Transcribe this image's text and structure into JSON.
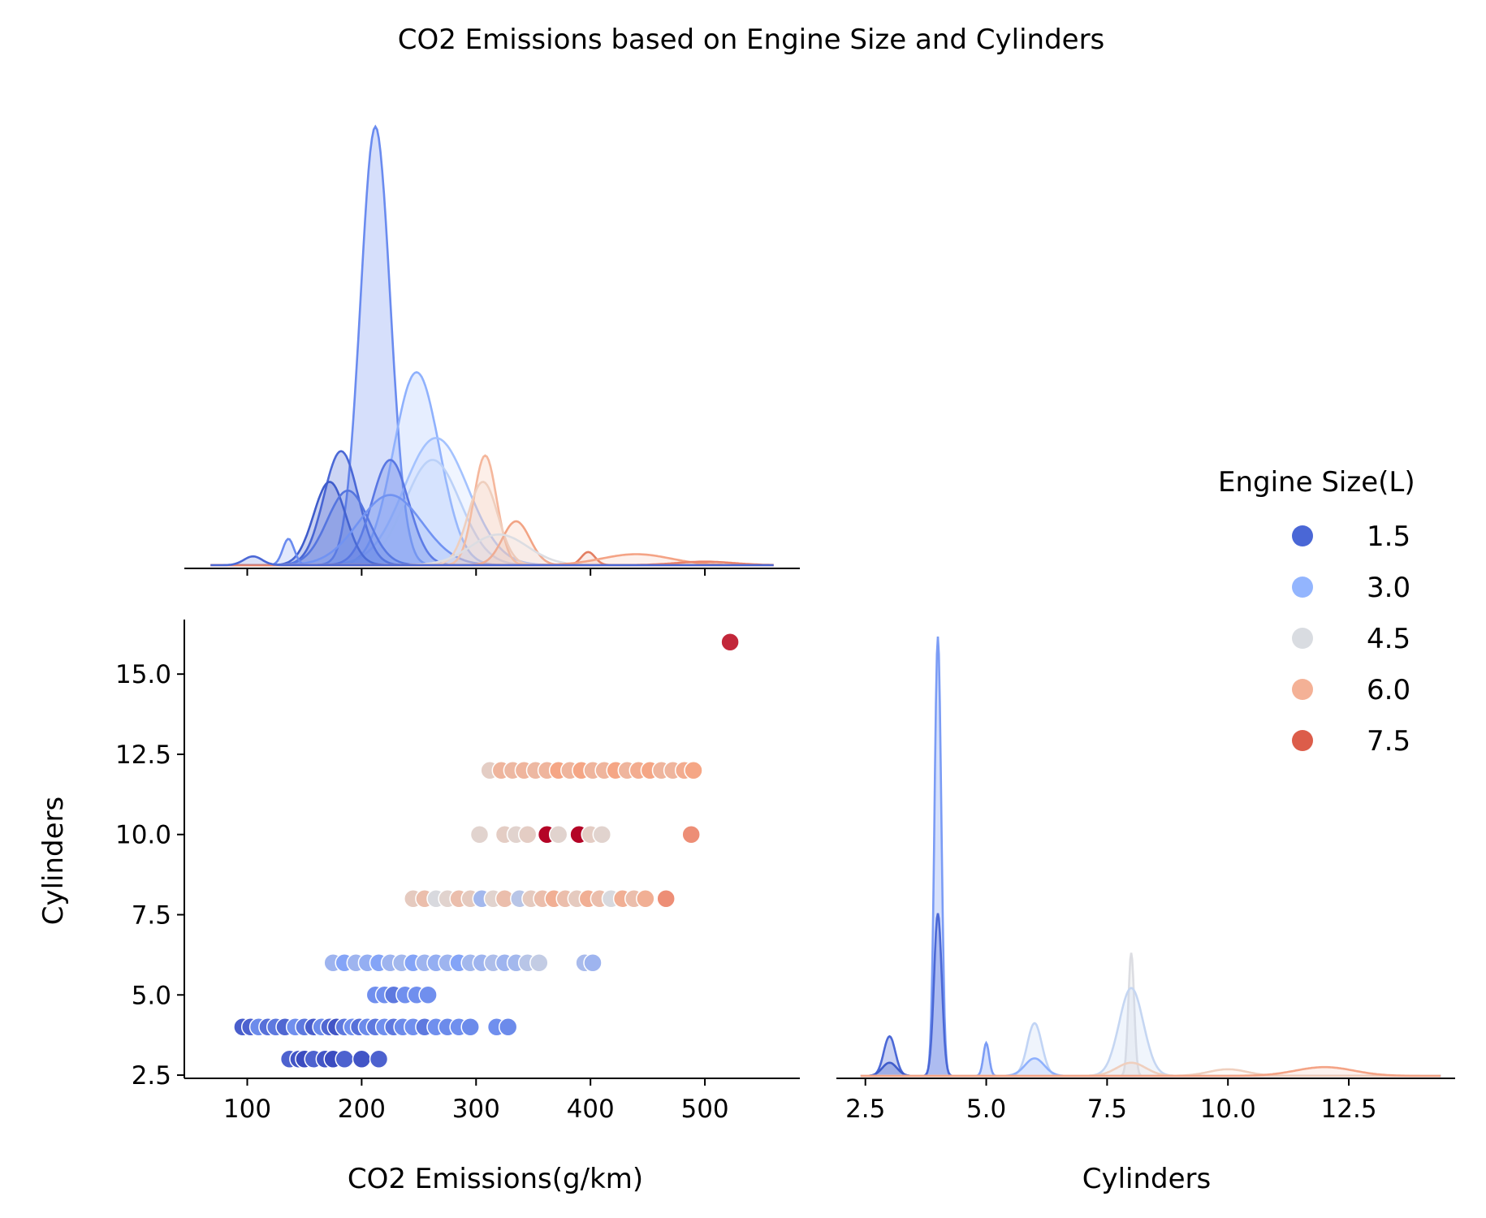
{
  "chart_data": {
    "type": "scatter",
    "title": "CO2 Emissions based on Engine Size and Cylinders",
    "panels": {
      "top_left": {
        "type": "kde",
        "variable": "CO2 Emissions(g/km)"
      },
      "bottom_left": {
        "type": "scatter",
        "xlabel": "CO2 Emissions(g/km)",
        "ylabel": "Cylinders"
      },
      "bottom_right": {
        "type": "kde",
        "variable": "Cylinders",
        "xlabel": "Cylinders"
      }
    },
    "x_emissions": {
      "range": [
        45,
        583
      ],
      "ticks": [
        100,
        200,
        300,
        400,
        500
      ],
      "tick_labels": [
        "100",
        "200",
        "300",
        "400",
        "500"
      ]
    },
    "y_cylinders": {
      "range": [
        2.4,
        16.7
      ],
      "ticks": [
        2.5,
        5.0,
        7.5,
        10.0,
        12.5,
        15.0
      ],
      "tick_labels": [
        "2.5",
        "5.0",
        "7.5",
        "10.0",
        "12.5",
        "15.0"
      ]
    },
    "x_cylinders": {
      "range": [
        1.9,
        14.7
      ],
      "ticks": [
        2.5,
        5.0,
        7.5,
        10.0,
        12.5
      ],
      "tick_labels": [
        "2.5",
        "5.0",
        "7.5",
        "10.0",
        "12.5"
      ]
    },
    "legend": {
      "title": "Engine Size(L)",
      "placement": "right",
      "entries": [
        {
          "label": "1.5",
          "color": "#4a67d6"
        },
        {
          "label": "3.0",
          "color": "#93b5fe"
        },
        {
          "label": "4.5",
          "color": "#d9dce1"
        },
        {
          "label": "6.0",
          "color": "#f4b196"
        },
        {
          "label": "7.5",
          "color": "#dc5d4a"
        }
      ]
    },
    "scatter_points": [
      {
        "x": 96,
        "y": 4,
        "e": 1.4
      },
      {
        "x": 103,
        "y": 4,
        "e": 1.5
      },
      {
        "x": 110,
        "y": 4,
        "e": 2.4
      },
      {
        "x": 118,
        "y": 4,
        "e": 1.8
      },
      {
        "x": 125,
        "y": 4,
        "e": 2.0
      },
      {
        "x": 133,
        "y": 4,
        "e": 1.6
      },
      {
        "x": 142,
        "y": 4,
        "e": 2.5
      },
      {
        "x": 150,
        "y": 4,
        "e": 2.0
      },
      {
        "x": 158,
        "y": 4,
        "e": 1.4
      },
      {
        "x": 165,
        "y": 4,
        "e": 2.4
      },
      {
        "x": 172,
        "y": 4,
        "e": 1.6
      },
      {
        "x": 178,
        "y": 4,
        "e": 1.2
      },
      {
        "x": 185,
        "y": 4,
        "e": 2.0
      },
      {
        "x": 192,
        "y": 4,
        "e": 2.5
      },
      {
        "x": 198,
        "y": 4,
        "e": 1.8
      },
      {
        "x": 205,
        "y": 4,
        "e": 2.4
      },
      {
        "x": 212,
        "y": 4,
        "e": 2.0
      },
      {
        "x": 220,
        "y": 4,
        "e": 2.5
      },
      {
        "x": 228,
        "y": 4,
        "e": 2.0
      },
      {
        "x": 236,
        "y": 4,
        "e": 2.4
      },
      {
        "x": 245,
        "y": 4,
        "e": 2.5
      },
      {
        "x": 255,
        "y": 4,
        "e": 2.0
      },
      {
        "x": 265,
        "y": 4,
        "e": 2.5
      },
      {
        "x": 275,
        "y": 4,
        "e": 2.4
      },
      {
        "x": 285,
        "y": 4,
        "e": 2.5
      },
      {
        "x": 295,
        "y": 4,
        "e": 2.4
      },
      {
        "x": 318,
        "y": 4,
        "e": 2.5
      },
      {
        "x": 328,
        "y": 4,
        "e": 2.4
      },
      {
        "x": 137,
        "y": 3,
        "e": 1.5
      },
      {
        "x": 145,
        "y": 3,
        "e": 1.2
      },
      {
        "x": 150,
        "y": 3,
        "e": 1.0
      },
      {
        "x": 158,
        "y": 3,
        "e": 1.5
      },
      {
        "x": 168,
        "y": 3,
        "e": 1.2
      },
      {
        "x": 175,
        "y": 3,
        "e": 1.0
      },
      {
        "x": 185,
        "y": 3,
        "e": 1.5
      },
      {
        "x": 200,
        "y": 3,
        "e": 1.2
      },
      {
        "x": 215,
        "y": 3,
        "e": 1.5
      },
      {
        "x": 212,
        "y": 5,
        "e": 2.5
      },
      {
        "x": 220,
        "y": 5,
        "e": 2.5
      },
      {
        "x": 228,
        "y": 5,
        "e": 2.0
      },
      {
        "x": 238,
        "y": 5,
        "e": 2.5
      },
      {
        "x": 248,
        "y": 5,
        "e": 2.5
      },
      {
        "x": 258,
        "y": 5,
        "e": 2.5
      },
      {
        "x": 175,
        "y": 6,
        "e": 3.5
      },
      {
        "x": 185,
        "y": 6,
        "e": 3.0
      },
      {
        "x": 195,
        "y": 6,
        "e": 3.5
      },
      {
        "x": 205,
        "y": 6,
        "e": 3.3
      },
      {
        "x": 215,
        "y": 6,
        "e": 3.0
      },
      {
        "x": 225,
        "y": 6,
        "e": 3.5
      },
      {
        "x": 235,
        "y": 6,
        "e": 3.6
      },
      {
        "x": 245,
        "y": 6,
        "e": 3.0
      },
      {
        "x": 255,
        "y": 6,
        "e": 3.5
      },
      {
        "x": 265,
        "y": 6,
        "e": 3.3
      },
      {
        "x": 275,
        "y": 6,
        "e": 3.5
      },
      {
        "x": 285,
        "y": 6,
        "e": 3.0
      },
      {
        "x": 295,
        "y": 6,
        "e": 3.6
      },
      {
        "x": 305,
        "y": 6,
        "e": 3.5
      },
      {
        "x": 315,
        "y": 6,
        "e": 3.8
      },
      {
        "x": 325,
        "y": 6,
        "e": 3.5
      },
      {
        "x": 335,
        "y": 6,
        "e": 3.6
      },
      {
        "x": 345,
        "y": 6,
        "e": 4.0
      },
      {
        "x": 355,
        "y": 6,
        "e": 4.2
      },
      {
        "x": 395,
        "y": 6,
        "e": 3.7
      },
      {
        "x": 402,
        "y": 6,
        "e": 3.5
      },
      {
        "x": 245,
        "y": 8,
        "e": 5.3
      },
      {
        "x": 255,
        "y": 8,
        "e": 5.7
      },
      {
        "x": 265,
        "y": 8,
        "e": 4.6
      },
      {
        "x": 275,
        "y": 8,
        "e": 5.0
      },
      {
        "x": 285,
        "y": 8,
        "e": 5.7
      },
      {
        "x": 295,
        "y": 8,
        "e": 5.3
      },
      {
        "x": 305,
        "y": 8,
        "e": 3.6
      },
      {
        "x": 315,
        "y": 8,
        "e": 5.0
      },
      {
        "x": 325,
        "y": 8,
        "e": 5.7
      },
      {
        "x": 338,
        "y": 8,
        "e": 4.0
      },
      {
        "x": 348,
        "y": 8,
        "e": 5.3
      },
      {
        "x": 358,
        "y": 8,
        "e": 5.7
      },
      {
        "x": 368,
        "y": 8,
        "e": 6.2
      },
      {
        "x": 378,
        "y": 8,
        "e": 5.7
      },
      {
        "x": 388,
        "y": 8,
        "e": 5.3
      },
      {
        "x": 398,
        "y": 8,
        "e": 6.2
      },
      {
        "x": 408,
        "y": 8,
        "e": 5.7
      },
      {
        "x": 418,
        "y": 8,
        "e": 4.6
      },
      {
        "x": 428,
        "y": 8,
        "e": 6.2
      },
      {
        "x": 438,
        "y": 8,
        "e": 5.7
      },
      {
        "x": 448,
        "y": 8,
        "e": 6.2
      },
      {
        "x": 466,
        "y": 8,
        "e": 6.8
      },
      {
        "x": 303,
        "y": 10,
        "e": 5.0
      },
      {
        "x": 325,
        "y": 10,
        "e": 5.2
      },
      {
        "x": 335,
        "y": 10,
        "e": 5.0
      },
      {
        "x": 345,
        "y": 10,
        "e": 5.2
      },
      {
        "x": 362,
        "y": 10,
        "e": 8.4
      },
      {
        "x": 372,
        "y": 10,
        "e": 5.0
      },
      {
        "x": 390,
        "y": 10,
        "e": 8.4
      },
      {
        "x": 400,
        "y": 10,
        "e": 5.2
      },
      {
        "x": 410,
        "y": 10,
        "e": 5.0
      },
      {
        "x": 488,
        "y": 10,
        "e": 6.8
      },
      {
        "x": 312,
        "y": 12,
        "e": 5.2
      },
      {
        "x": 322,
        "y": 12,
        "e": 6.0
      },
      {
        "x": 332,
        "y": 12,
        "e": 5.9
      },
      {
        "x": 342,
        "y": 12,
        "e": 6.0
      },
      {
        "x": 352,
        "y": 12,
        "e": 5.9
      },
      {
        "x": 362,
        "y": 12,
        "e": 6.0
      },
      {
        "x": 372,
        "y": 12,
        "e": 6.5
      },
      {
        "x": 382,
        "y": 12,
        "e": 6.0
      },
      {
        "x": 392,
        "y": 12,
        "e": 6.5
      },
      {
        "x": 402,
        "y": 12,
        "e": 6.0
      },
      {
        "x": 412,
        "y": 12,
        "e": 6.0
      },
      {
        "x": 422,
        "y": 12,
        "e": 6.5
      },
      {
        "x": 432,
        "y": 12,
        "e": 6.0
      },
      {
        "x": 442,
        "y": 12,
        "e": 6.3
      },
      {
        "x": 452,
        "y": 12,
        "e": 6.5
      },
      {
        "x": 462,
        "y": 12,
        "e": 6.0
      },
      {
        "x": 472,
        "y": 12,
        "e": 6.0
      },
      {
        "x": 482,
        "y": 12,
        "e": 6.3
      },
      {
        "x": 490,
        "y": 12,
        "e": 6.5
      },
      {
        "x": 522,
        "y": 16,
        "e": 8.0
      }
    ],
    "kde_emissions": [
      {
        "mu": 212,
        "sd": 13,
        "amp": 1.0,
        "color": "#6a8bef",
        "fill": 0.28
      },
      {
        "mu": 248,
        "sd": 20,
        "amp": 0.44,
        "color": "#8fb1fd",
        "fill": 0.22
      },
      {
        "mu": 265,
        "sd": 28,
        "amp": 0.29,
        "color": "#a4c2fe",
        "fill": 0.16
      },
      {
        "mu": 262,
        "sd": 24,
        "amp": 0.24,
        "color": "#bbd1f8",
        "fill": 0.14
      },
      {
        "mu": 182,
        "sd": 15,
        "amp": 0.26,
        "color": "#4b68d6",
        "fill": 0.28
      },
      {
        "mu": 225,
        "sd": 16,
        "amp": 0.24,
        "color": "#5977e3",
        "fill": 0.28
      },
      {
        "mu": 172,
        "sd": 14,
        "amp": 0.19,
        "color": "#3f5ccb",
        "fill": 0.28
      },
      {
        "mu": 188,
        "sd": 18,
        "amp": 0.17,
        "color": "#5575df",
        "fill": 0.24
      },
      {
        "mu": 225,
        "sd": 28,
        "amp": 0.16,
        "color": "#7193f2",
        "fill": 0.18
      },
      {
        "mu": 136,
        "sd": 5,
        "amp": 0.06,
        "color": "#6a8bef",
        "fill": 0.2
      },
      {
        "mu": 308,
        "sd": 10,
        "amp": 0.25,
        "color": "#f5b79c",
        "fill": 0.22
      },
      {
        "mu": 306,
        "sd": 13,
        "amp": 0.19,
        "color": "#efcfbe",
        "fill": 0.18
      },
      {
        "mu": 335,
        "sd": 12,
        "amp": 0.1,
        "color": "#f2a485",
        "fill": 0.18
      },
      {
        "mu": 320,
        "sd": 25,
        "amp": 0.07,
        "color": "#dcdde2",
        "fill": 0.15
      },
      {
        "mu": 398,
        "sd": 6,
        "amp": 0.03,
        "color": "#e37e62",
        "fill": 0.15
      },
      {
        "mu": 440,
        "sd": 30,
        "amp": 0.025,
        "color": "#f4a385",
        "fill": 0.15
      },
      {
        "mu": 500,
        "sd": 25,
        "amp": 0.008,
        "color": "#e8826a",
        "fill": 0.1
      },
      {
        "mu": 105,
        "sd": 8,
        "amp": 0.02,
        "color": "#4b68d6",
        "fill": 0.2
      }
    ],
    "kde_cylinders": [
      {
        "mu": 4.0,
        "sd": 0.07,
        "amp": 1.0,
        "color": "#7b9cf5",
        "fill": 0.3
      },
      {
        "mu": 4.0,
        "sd": 0.08,
        "amp": 0.37,
        "color": "#4b68d6",
        "fill": 0.3
      },
      {
        "mu": 3.0,
        "sd": 0.12,
        "amp": 0.09,
        "color": "#4b68d6",
        "fill": 0.3
      },
      {
        "mu": 3.0,
        "sd": 0.15,
        "amp": 0.03,
        "color": "#3f5ccb",
        "fill": 0.3
      },
      {
        "mu": 5.0,
        "sd": 0.06,
        "amp": 0.075,
        "color": "#7b9cf5",
        "fill": 0.3
      },
      {
        "mu": 6.0,
        "sd": 0.15,
        "amp": 0.12,
        "color": "#c1d4f5",
        "fill": 0.25
      },
      {
        "mu": 6.0,
        "sd": 0.2,
        "amp": 0.04,
        "color": "#8fb1fd",
        "fill": 0.2
      },
      {
        "mu": 8.0,
        "sd": 0.06,
        "amp": 0.28,
        "color": "#dcdde2",
        "fill": 0.3
      },
      {
        "mu": 8.0,
        "sd": 0.25,
        "amp": 0.2,
        "color": "#c5d6f2",
        "fill": 0.25
      },
      {
        "mu": 8.0,
        "sd": 0.3,
        "amp": 0.03,
        "color": "#efcfbe",
        "fill": 0.15
      },
      {
        "mu": 10.0,
        "sd": 0.4,
        "amp": 0.015,
        "color": "#efcfbe",
        "fill": 0.15
      },
      {
        "mu": 12.0,
        "sd": 0.6,
        "amp": 0.02,
        "color": "#f4a385",
        "fill": 0.15
      }
    ]
  }
}
